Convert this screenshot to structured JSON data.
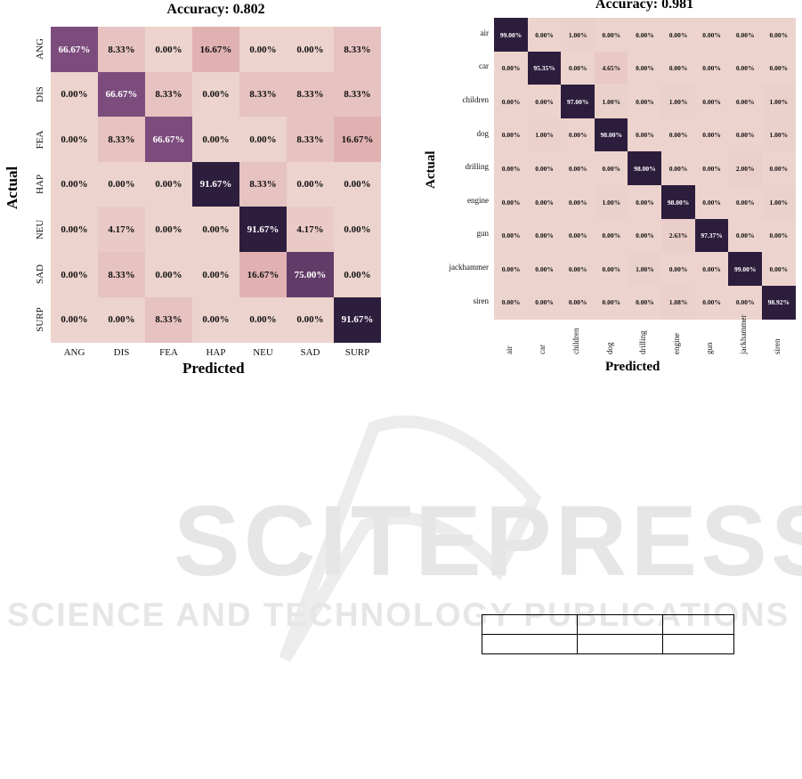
{
  "chart_data": [
    {
      "type": "heatmap",
      "title": "Accuracy: 0.802",
      "xlabel": "Predicted",
      "ylabel": "Actual",
      "categories": [
        "ANG",
        "DIS",
        "FEA",
        "HAP",
        "NEU",
        "SAD",
        "SURP"
      ],
      "values": [
        [
          66.67,
          8.33,
          0.0,
          16.67,
          0.0,
          0.0,
          8.33
        ],
        [
          0.0,
          66.67,
          8.33,
          0.0,
          8.33,
          8.33,
          8.33
        ],
        [
          0.0,
          8.33,
          66.67,
          0.0,
          0.0,
          8.33,
          16.67
        ],
        [
          0.0,
          0.0,
          0.0,
          91.67,
          8.33,
          0.0,
          0.0
        ],
        [
          0.0,
          4.17,
          0.0,
          0.0,
          91.67,
          4.17,
          0.0
        ],
        [
          0.0,
          8.33,
          0.0,
          0.0,
          16.67,
          75.0,
          0.0
        ],
        [
          0.0,
          0.0,
          8.33,
          0.0,
          0.0,
          0.0,
          91.67
        ]
      ],
      "value_format": "percent",
      "colorscale": [
        "#ecd3cd",
        "#e0aeb0",
        "#7b4b7d",
        "#2d1d3d"
      ]
    },
    {
      "type": "heatmap",
      "title": "Accuracy: 0.981",
      "xlabel": "Predicted",
      "ylabel": "Actual",
      "categories": [
        "air",
        "car",
        "children",
        "dog",
        "drilling",
        "engine",
        "gun",
        "jackhammer",
        "siren"
      ],
      "values": [
        [
          99.0,
          0.0,
          1.0,
          0.0,
          0.0,
          0.0,
          0.0,
          0.0,
          0.0
        ],
        [
          0.0,
          95.35,
          0.0,
          4.65,
          0.0,
          0.0,
          0.0,
          0.0,
          0.0
        ],
        [
          0.0,
          0.0,
          97.0,
          1.0,
          0.0,
          1.0,
          0.0,
          0.0,
          1.0
        ],
        [
          0.0,
          1.0,
          0.0,
          98.0,
          0.0,
          0.0,
          0.0,
          0.0,
          1.0
        ],
        [
          0.0,
          0.0,
          0.0,
          0.0,
          98.0,
          0.0,
          0.0,
          2.0,
          0.0
        ],
        [
          0.0,
          0.0,
          0.0,
          1.0,
          0.0,
          98.0,
          0.0,
          0.0,
          1.0
        ],
        [
          0.0,
          0.0,
          0.0,
          0.0,
          0.0,
          2.63,
          97.37,
          0.0,
          0.0
        ],
        [
          0.0,
          0.0,
          0.0,
          0.0,
          1.0,
          0.0,
          0.0,
          99.0,
          0.0
        ],
        [
          0.0,
          0.0,
          0.0,
          0.0,
          0.0,
          1.08,
          0.0,
          0.0,
          98.92
        ]
      ],
      "value_format": "percent",
      "colorscale": [
        "#ecd3cd",
        "#e0aeb0",
        "#7b4b7d",
        "#2d1d3d"
      ]
    }
  ],
  "watermark": {
    "main": "SCITEPRESS",
    "sub": "SCIENCE AND TECHNOLOGY PUBLICATIONS"
  }
}
